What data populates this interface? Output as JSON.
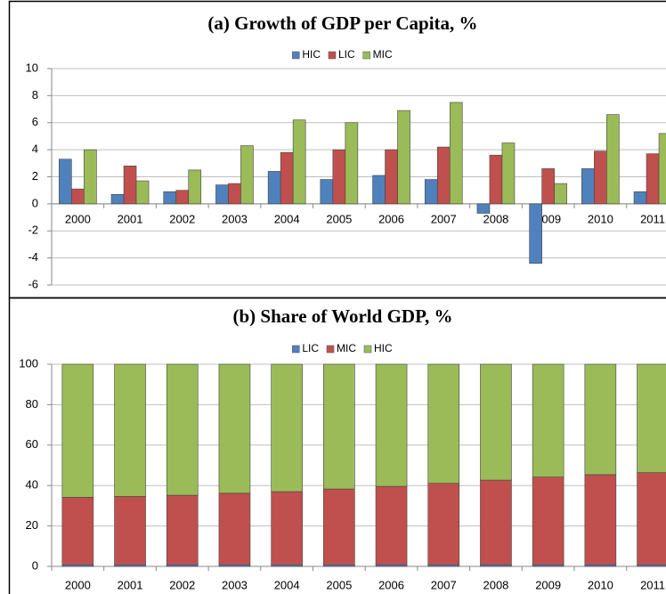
{
  "chart_data": [
    {
      "type": "bar",
      "title": "(a) Growth of GDP per Capita, %",
      "categories": [
        "2000",
        "2001",
        "2002",
        "2003",
        "2004",
        "2005",
        "2006",
        "2007",
        "2008",
        "2009",
        "2010",
        "2011"
      ],
      "series": [
        {
          "name": "HIC",
          "color": "#4f81bd",
          "values": [
            3.3,
            0.7,
            0.9,
            1.4,
            2.4,
            1.8,
            2.1,
            1.8,
            -0.7,
            -4.4,
            2.6,
            0.9
          ]
        },
        {
          "name": "LIC",
          "color": "#c0504d",
          "values": [
            1.1,
            2.8,
            1.0,
            1.5,
            3.8,
            4.0,
            4.0,
            4.2,
            3.6,
            2.6,
            3.9,
            3.7
          ]
        },
        {
          "name": "MIC",
          "color": "#9bbb59",
          "values": [
            4.0,
            1.7,
            2.5,
            4.3,
            6.2,
            6.0,
            6.9,
            7.5,
            4.5,
            1.5,
            6.6,
            5.2
          ]
        }
      ],
      "ylim": [
        -6,
        10
      ],
      "yticks": [
        -6,
        -4,
        -2,
        0,
        2,
        4,
        6,
        8,
        10
      ],
      "grid": true,
      "legend": "top",
      "stacked": false
    },
    {
      "type": "bar",
      "title": "(b) Share of World GDP, %",
      "categories": [
        "2000",
        "2001",
        "2002",
        "2003",
        "2004",
        "2005",
        "2006",
        "2007",
        "2008",
        "2009",
        "2010",
        "2011"
      ],
      "series": [
        {
          "name": "LIC",
          "color": "#4f81bd",
          "values": [
            0.8,
            0.8,
            0.8,
            0.8,
            0.8,
            0.8,
            0.8,
            0.8,
            0.8,
            0.8,
            0.8,
            0.8
          ]
        },
        {
          "name": "MIC",
          "color": "#c0504d",
          "values": [
            33.4,
            33.8,
            34.4,
            35.4,
            36.2,
            37.5,
            38.8,
            40.3,
            41.9,
            43.4,
            44.6,
            45.6
          ]
        },
        {
          "name": "HIC",
          "color": "#9bbb59",
          "values": [
            65.8,
            65.4,
            64.8,
            63.8,
            63.0,
            61.7,
            60.4,
            58.9,
            57.3,
            55.8,
            54.6,
            53.6
          ]
        }
      ],
      "ylim": [
        0,
        100
      ],
      "yticks": [
        0,
        20,
        40,
        60,
        80,
        100
      ],
      "grid": true,
      "legend": "top",
      "stacked": true
    }
  ]
}
